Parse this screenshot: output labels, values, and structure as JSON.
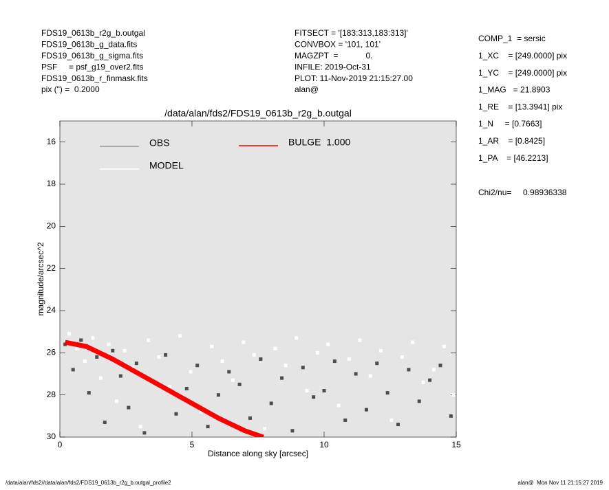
{
  "chart_data": {
    "type": "scatter",
    "title": "/data/alan/fds2/FDS19_0613b_r2g_b.outgal",
    "x_label": "Distance along sky [arcsec]",
    "y_label": "magnitude/arcsec^2",
    "header_left": [
      "FDS19_0613b_r2g_b.outgal",
      "FDS19_0613b_g_data.fits",
      "FDS19_0613b_g_sigma.fits",
      "PSF     = psf_g19_over2.fits",
      "FDS19_0613b_r_finmask.fits",
      "pix (\") =  0.2000"
    ],
    "header_middle": [
      "FITSECT = '[183:313,183:313]'",
      "CONVBOX = '101, 101'",
      "MAGZPT  =            0.",
      "INFILE: 2019-Oct-31",
      "PLOT: 11-Nov-2019 21:15:27.00",
      "alan@"
    ],
    "fit_results": [
      "COMP_1  = sersic",
      "1_XC    = [249.0000] pix",
      "1_YC    = [249.0000] pix",
      "1_MAG   = 21.8903",
      "1_RE    = [13.3941] pix",
      "1_N     = [0.7663]",
      "1_AR    = [0.8425]",
      "1_PA    = [46.2213]",
      "Chi2/nu=     0.98936338"
    ],
    "footer_left": "/data/alan/fds2//data/alan/fds2/FDS19_0613b_r2g_b.outgal_profile2",
    "footer_right": "alan@  Mon Nov 11 21:15:27 2019",
    "xlim": [
      0,
      15
    ],
    "xticks": [
      0,
      5,
      10,
      15
    ],
    "ylim": [
      30,
      15
    ],
    "yticks": [
      16,
      18,
      20,
      22,
      24,
      26,
      28,
      30
    ],
    "plot_background": "#e5e5e5",
    "series": [
      {
        "name": "OBS",
        "color": "#4d4d4d",
        "x": [
          0.2,
          0.5,
          0.8,
          1.1,
          1.4,
          1.7,
          2.0,
          2.3,
          2.6,
          2.9,
          3.2,
          3.6,
          4.0,
          4.4,
          4.8,
          5.2,
          5.6,
          6.0,
          6.4,
          6.8,
          7.2,
          7.6,
          8.0,
          8.4,
          8.8,
          9.2,
          9.6,
          10.0,
          10.4,
          10.8,
          11.2,
          11.6,
          12.0,
          12.4,
          12.8,
          13.2,
          13.6,
          14.0,
          14.4,
          14.8
        ],
        "values": [
          25.6,
          26.8,
          25.4,
          27.9,
          26.2,
          29.3,
          25.9,
          27.1,
          28.6,
          26.5,
          29.8,
          27.4,
          26.1,
          28.9,
          27.7,
          26.6,
          29.5,
          28.0,
          26.9,
          27.5,
          29.1,
          26.3,
          28.4,
          27.2,
          29.7,
          26.7,
          28.1,
          27.8,
          26.4,
          29.2,
          27.0,
          28.7,
          26.5,
          27.9,
          29.4,
          26.8,
          28.3,
          27.3,
          26.6,
          29.0
        ]
      },
      {
        "name": "MODEL",
        "color": "#ffffff",
        "x": [
          0.35,
          0.65,
          0.95,
          1.25,
          1.55,
          1.85,
          2.15,
          2.45,
          2.75,
          3.05,
          3.35,
          3.75,
          4.15,
          4.55,
          4.95,
          5.35,
          5.75,
          6.15,
          6.55,
          6.95,
          7.35,
          7.75,
          8.15,
          8.55,
          8.95,
          9.35,
          9.75,
          10.15,
          10.55,
          10.95,
          11.35,
          11.75,
          12.15,
          12.55,
          12.95,
          13.35,
          13.75,
          14.15,
          14.55,
          14.9
        ],
        "values": [
          25.1,
          25.8,
          26.4,
          25.3,
          27.2,
          25.6,
          28.3,
          25.9,
          26.7,
          29.5,
          25.4,
          26.2,
          27.6,
          25.2,
          26.9,
          28.8,
          25.7,
          26.4,
          27.3,
          25.5,
          26.1,
          29.6,
          25.8,
          26.6,
          25.3,
          27.8,
          26.0,
          25.6,
          28.5,
          26.3,
          25.4,
          27.1,
          25.9,
          29.2,
          26.2,
          25.5,
          27.4,
          26.8,
          25.7,
          28.0
        ]
      },
      {
        "name": "BULGE  1.000",
        "color": "#ff0000",
        "x": [
          0.2,
          1,
          2,
          3,
          4,
          5,
          6,
          7,
          7.7
        ],
        "values": [
          25.5,
          25.7,
          26.3,
          27.0,
          27.7,
          28.4,
          29.1,
          29.7,
          30.0
        ]
      }
    ]
  }
}
